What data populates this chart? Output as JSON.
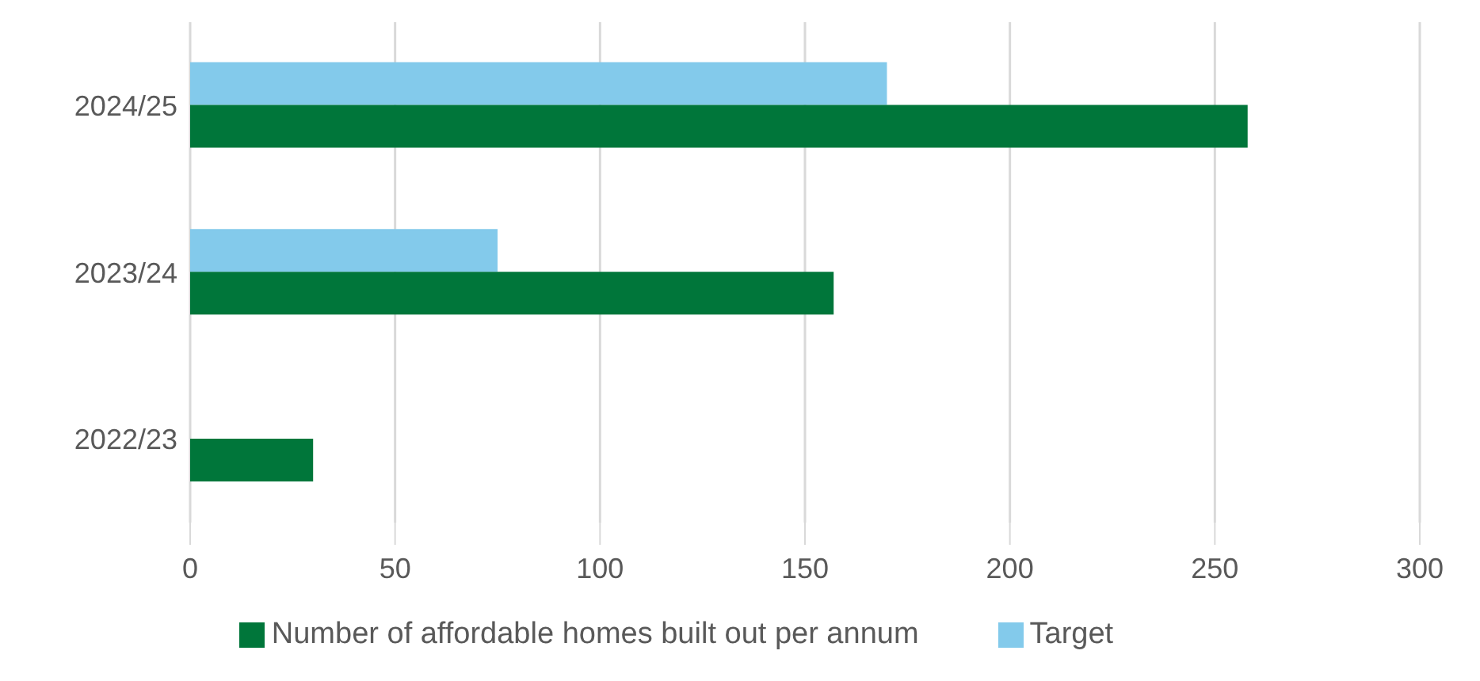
{
  "chart_data": {
    "type": "bar",
    "orientation": "horizontal",
    "categories": [
      "2024/25",
      "2023/24",
      "2022/23"
    ],
    "series": [
      {
        "name": "Target",
        "color": "#83caeb",
        "values": [
          170,
          75,
          null
        ]
      },
      {
        "name": "Number of affordable homes built out per annum",
        "color": "#00763a",
        "values": [
          258,
          157,
          30
        ]
      }
    ],
    "xlim": [
      0,
      300
    ],
    "xticks": [
      0,
      50,
      100,
      150,
      200,
      250,
      300
    ],
    "grid": "x",
    "legend": "bottom"
  }
}
